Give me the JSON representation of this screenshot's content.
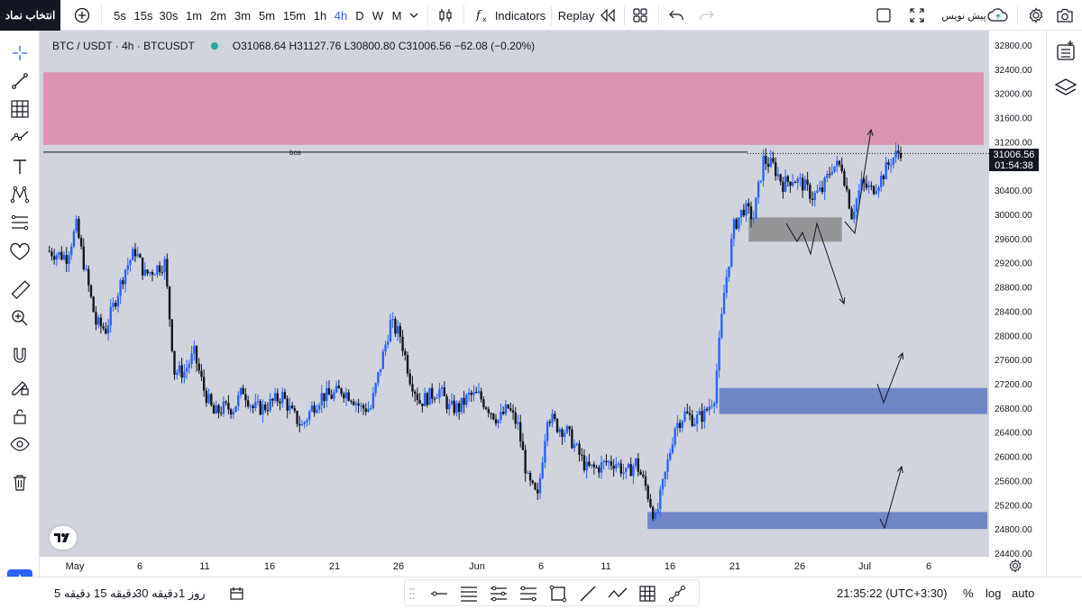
{
  "header": {
    "symbol_button": "انتخاب نماد",
    "intervals": [
      "5s",
      "15s",
      "30s",
      "1m",
      "2m",
      "3m",
      "5m",
      "15m",
      "1h",
      "4h",
      "D",
      "W",
      "M"
    ],
    "active_interval": "4h",
    "indicators_label": "Indicators",
    "replay_label": "Replay",
    "publish_label": "پیش نویس"
  },
  "legend": {
    "symbol": "BTC / USDT · 4h · BTCUSDT",
    "ohlc": "O31068.64 H31127.76 L30800.80 C31006.56 −62.08 (−0.20%)"
  },
  "chart": {
    "bos_label": "bos",
    "current_price": "31006.56",
    "countdown": "01:54:38",
    "colors": {
      "up": "#2962ff",
      "down": "#131722",
      "supply_zone": "#db93b0",
      "demand_zone": "#7086c6",
      "range_zone": "#8a8a8a",
      "background": "#d1d4dc"
    }
  },
  "chart_data": {
    "type": "candlestick",
    "ylim": [
      24400,
      32800
    ],
    "y_ticks": [
      "32800.00",
      "32400.00",
      "32000.00",
      "31600.00",
      "31200.00",
      "30800.00",
      "30400.00",
      "30000.00",
      "29600.00",
      "29200.00",
      "28800.00",
      "28400.00",
      "28000.00",
      "27600.00",
      "27200.00",
      "26800.00",
      "26400.00",
      "26000.00",
      "25600.00",
      "25200.00",
      "24800.00",
      "24400.00"
    ],
    "x_ticks": [
      "May",
      "6",
      "11",
      "16",
      "21",
      "26",
      "Jun",
      "6",
      "11",
      "16",
      "21",
      "26",
      "Jul",
      "6"
    ],
    "close_path": [
      [
        0,
        29400
      ],
      [
        2,
        29300
      ],
      [
        3,
        29800
      ],
      [
        5,
        28200
      ],
      [
        6,
        28100
      ],
      [
        8,
        29100
      ],
      [
        9,
        29400
      ],
      [
        10,
        29000
      ],
      [
        12,
        29200
      ],
      [
        13,
        27400
      ],
      [
        14,
        27400
      ],
      [
        15,
        27700
      ],
      [
        16,
        27100
      ],
      [
        17,
        26700
      ],
      [
        18,
        26800
      ],
      [
        19,
        26800
      ],
      [
        20,
        27100
      ],
      [
        21,
        26800
      ],
      [
        22,
        26800
      ],
      [
        23,
        26900
      ],
      [
        24,
        27000
      ],
      [
        25,
        26700
      ],
      [
        26,
        26500
      ],
      [
        27,
        26800
      ],
      [
        28,
        27000
      ],
      [
        29,
        27000
      ],
      [
        30,
        27100
      ],
      [
        31,
        27000
      ],
      [
        32,
        26800
      ],
      [
        33,
        26800
      ],
      [
        34,
        27500
      ],
      [
        35,
        28200
      ],
      [
        36,
        28000
      ],
      [
        37,
        27300
      ],
      [
        38,
        26900
      ],
      [
        39,
        27000
      ],
      [
        40,
        27100
      ],
      [
        41,
        26800
      ],
      [
        42,
        26800
      ],
      [
        43,
        27000
      ],
      [
        44,
        27000
      ],
      [
        45,
        26800
      ],
      [
        46,
        26600
      ],
      [
        47,
        26800
      ],
      [
        48,
        26500
      ],
      [
        49,
        25600
      ],
      [
        50,
        25300
      ],
      [
        51,
        26700
      ],
      [
        52,
        26500
      ],
      [
        53,
        26400
      ],
      [
        54,
        26100
      ],
      [
        55,
        25800
      ],
      [
        56,
        25800
      ],
      [
        57,
        25900
      ],
      [
        58,
        25900
      ],
      [
        59,
        25700
      ],
      [
        60,
        25900
      ],
      [
        61,
        25500
      ],
      [
        62,
        24950
      ],
      [
        63,
        25700
      ],
      [
        64,
        26500
      ],
      [
        65,
        26700
      ],
      [
        66,
        26600
      ],
      [
        67,
        26700
      ],
      [
        68,
        27000
      ],
      [
        69,
        28700
      ],
      [
        70,
        29800
      ],
      [
        71,
        30100
      ],
      [
        72,
        29950
      ],
      [
        73,
        30900
      ],
      [
        74,
        30800
      ],
      [
        75,
        30500
      ],
      [
        76,
        30600
      ],
      [
        77,
        30500
      ],
      [
        78,
        30300
      ],
      [
        79,
        30400
      ],
      [
        80,
        30800
      ],
      [
        81,
        30800
      ],
      [
        82,
        30000
      ],
      [
        83,
        30500
      ],
      [
        84,
        30400
      ],
      [
        85,
        30600
      ],
      [
        86,
        30900
      ],
      [
        87,
        31060
      ]
    ],
    "zones": [
      {
        "name": "supply-zone",
        "from": 31150,
        "to": 32350,
        "x_from": 0,
        "x_to": 87
      },
      {
        "name": "range-zone",
        "from": 29550,
        "to": 29950,
        "x_from": 71.5,
        "x_to": 81
      },
      {
        "name": "demand-zone-upper",
        "from": 26700,
        "to": 27130,
        "x_from": 68.5,
        "x_to": 87
      },
      {
        "name": "demand-zone-lower",
        "from": 24800,
        "to": 25080,
        "x_from": 61.2,
        "x_to": 87
      }
    ],
    "bos_level": 31030
  },
  "left_tools": [
    "crosshair-icon",
    "trend-line-icon",
    "fib-grid-icon",
    "patterns-icon",
    "text-icon",
    "xabcd-icon",
    "forecast-icon",
    "heart-icon",
    "ruler-icon",
    "zoom-in-icon",
    "magnet-icon",
    "lock-draw-icon",
    "lock-icon",
    "eye-icon",
    "trash-icon"
  ],
  "footer": {
    "timeframes": [
      "5 دقیقه",
      "15 دقیقه",
      "30 دقیقه",
      "1 روز"
    ],
    "time": "21:35:22 (UTC+3:30)",
    "percent": "%",
    "log": "log",
    "auto": "auto"
  }
}
